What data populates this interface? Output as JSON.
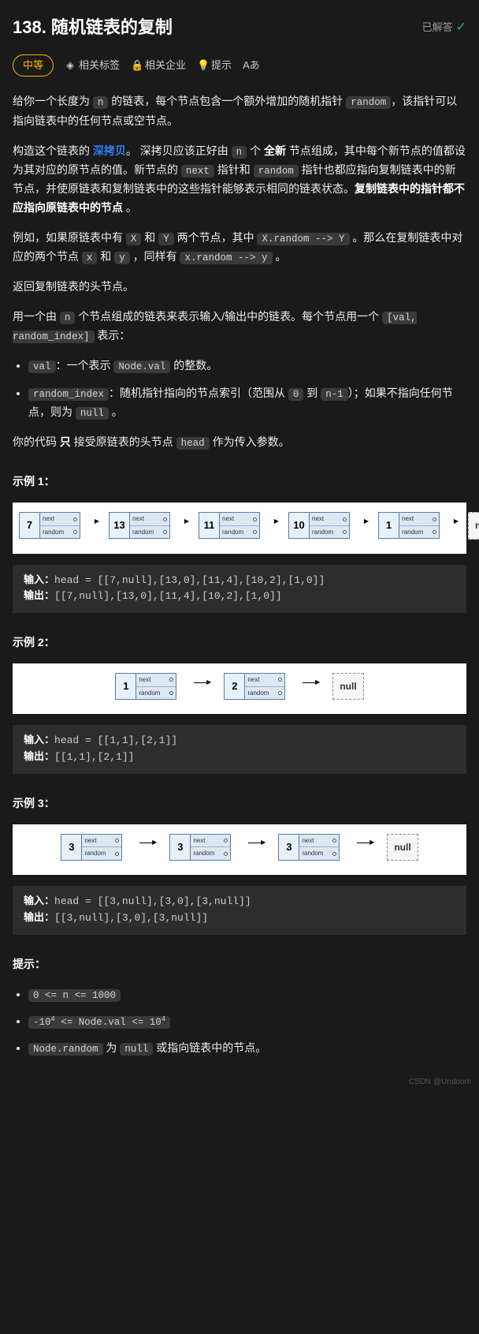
{
  "header": {
    "title": "138. 随机链表的复制",
    "solved_label": "已解答"
  },
  "meta": {
    "difficulty": "中等",
    "tags": "相关标签",
    "companies": "相关企业",
    "hint": "提示"
  },
  "desc": {
    "p1_a": "给你一个长度为 ",
    "p1_n": "n",
    "p1_b": " 的链表，每个节点包含一个额外增加的随机指针 ",
    "p1_random": "random",
    "p1_c": "，该指针可以指向链表中的任何节点或空节点。",
    "p2_a": "构造这个链表的 ",
    "p2_deep": "深拷贝",
    "p2_b": "。 深拷贝应该正好由 ",
    "p2_n": "n",
    "p2_c": " 个 ",
    "p2_new": "全新",
    "p2_d": " 节点组成，其中每个新节点的值都设为其对应的原节点的值。新节点的 ",
    "p2_next": "next",
    "p2_e": " 指针和 ",
    "p2_random": "random",
    "p2_f": " 指针也都应指向复制链表中的新节点，并使原链表和复制链表中的这些指针能够表示相同的链表状态。",
    "p2_bold": "复制链表中的指针都不应指向原链表中的节点",
    "p2_g": " 。",
    "p3_a": "例如，如果原链表中有 ",
    "p3_X": "X",
    "p3_b": " 和 ",
    "p3_Y": "Y",
    "p3_c": " 两个节点，其中 ",
    "p3_xy": "X.random --> Y",
    "p3_d": " 。那么在复制链表中对应的两个节点 ",
    "p3_x": "x",
    "p3_e": " 和 ",
    "p3_y": "y",
    "p3_f": " ，同样有 ",
    "p3_xy2": "x.random --> y",
    "p3_g": " 。",
    "p4": "返回复制链表的头节点。",
    "p5_a": "用一个由 ",
    "p5_n": "n",
    "p5_b": " 个节点组成的链表来表示输入/输出中的链表。每个节点用一个 ",
    "p5_fmt": "[val, random_index]",
    "p5_c": " 表示：",
    "li1_val": "val",
    "li1_rest": "：一个表示 ",
    "li1_nodeval": "Node.val",
    "li1_end": " 的整数。",
    "li2_ri": "random_index",
    "li2_a": "：随机指针指向的节点索引（范围从 ",
    "li2_0": "0",
    "li2_b": " 到 ",
    "li2_n1": "n-1",
    "li2_c": "）；如果不指向任何节点，则为  ",
    "li2_null": "null",
    "li2_d": " 。",
    "p6_a": "你的代码 ",
    "p6_only": "只",
    "p6_b": " 接受原链表的头节点 ",
    "p6_head": "head",
    "p6_c": " 作为传入参数。"
  },
  "labels": {
    "next": "next",
    "random": "random",
    "null": "null",
    "input": "输入：",
    "output": "输出："
  },
  "examples": {
    "e1": {
      "title": "示例 1：",
      "nodes": [
        "7",
        "13",
        "11",
        "10",
        "1"
      ],
      "input": "head = [[7,null],[13,0],[11,4],[10,2],[1,0]]",
      "output": "[[7,null],[13,0],[11,4],[10,2],[1,0]]"
    },
    "e2": {
      "title": "示例 2：",
      "nodes": [
        "1",
        "2"
      ],
      "input": "head = [[1,1],[2,1]]",
      "output": "[[1,1],[2,1]]"
    },
    "e3": {
      "title": "示例 3：",
      "nodes": [
        "3",
        "3",
        "3"
      ],
      "input": "head = [[3,null],[3,0],[3,null]]",
      "output": "[[3,null],[3,0],[3,null]]"
    }
  },
  "constraints": {
    "title": "提示：",
    "c1": "0 <= n <= 1000",
    "c2_a": "-10",
    "c2_sup": "4",
    "c2_b": " <= Node.val <= 10",
    "c3_a": "Node.random",
    "c3_b": " 为 ",
    "c3_null": "null",
    "c3_c": " 或指向链表中的节点。"
  },
  "watermark": "CSDN @Undoom",
  "style": {
    "colors": {
      "bg": "#1a1a1a",
      "text": "#eeeeee",
      "accent_yellow": "#ffb800",
      "link_blue": "#2f81f7",
      "check_green": "#2db55d",
      "code_bg": "#3a3a3a",
      "block_bg": "#2d2d2d",
      "node_fill": "#dbe7f3",
      "node_border": "#5b7da3"
    },
    "title_fontsize": 22,
    "body_fontsize": 14
  }
}
